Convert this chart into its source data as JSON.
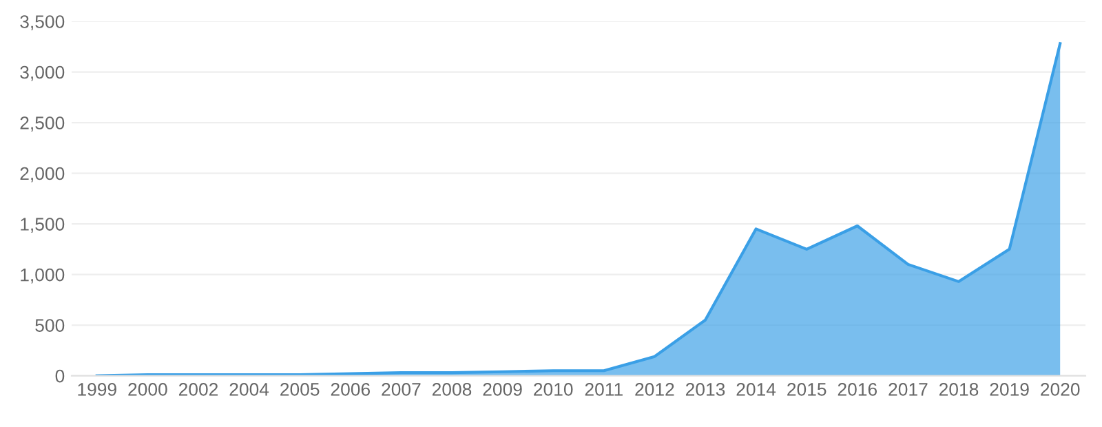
{
  "chart_data": {
    "type": "area",
    "categories": [
      "1999",
      "2000",
      "2002",
      "2004",
      "2005",
      "2006",
      "2007",
      "2008",
      "2009",
      "2010",
      "2011",
      "2012",
      "2013",
      "2014",
      "2015",
      "2016",
      "2017",
      "2018",
      "2019",
      "2020"
    ],
    "series": [
      {
        "color": "#3a9fe6",
        "values": [
          0,
          10,
          10,
          10,
          10,
          20,
          30,
          30,
          40,
          50,
          50,
          190,
          550,
          1450,
          1250,
          1480,
          1100,
          930,
          1250,
          3280
        ]
      }
    ],
    "ylim": [
      0,
      3500
    ],
    "yticks": [
      {
        "value": 0,
        "label": "0"
      },
      {
        "value": 500,
        "label": "500"
      },
      {
        "value": 1000,
        "label": "1,000"
      },
      {
        "value": 1500,
        "label": "1,500"
      },
      {
        "value": 2000,
        "label": "2,000"
      },
      {
        "value": 2500,
        "label": "2,500"
      },
      {
        "value": 3000,
        "label": "3,000"
      },
      {
        "value": 3500,
        "label": "3,500"
      }
    ],
    "grid": "y",
    "legend": false
  }
}
